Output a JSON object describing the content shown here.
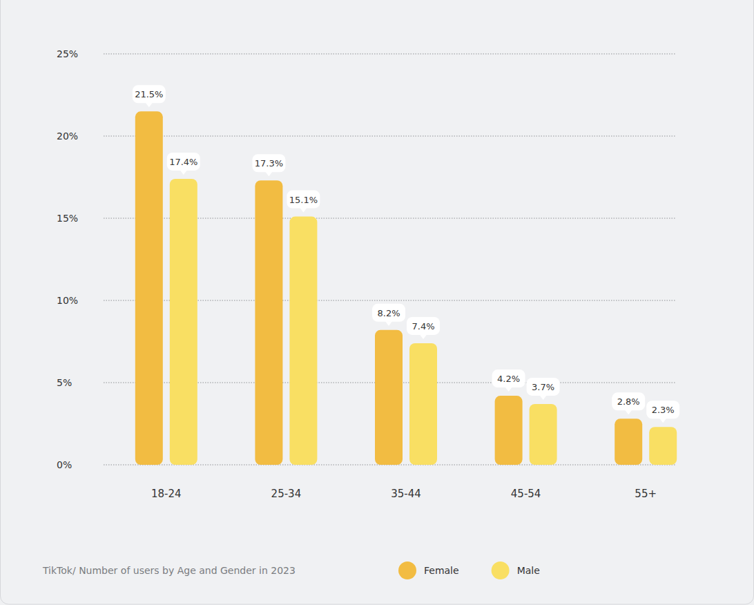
{
  "chart_data": {
    "type": "bar",
    "title": "TikTok/ Number of users by Age and Gender in 2023",
    "categories": [
      "18-24",
      "25-34",
      "35-44",
      "45-54",
      "55+"
    ],
    "series": [
      {
        "name": "Female",
        "color": "#f2bc42",
        "values": [
          21.5,
          17.3,
          8.2,
          4.2,
          2.8
        ],
        "value_labels": [
          "21.5%",
          "17.3%",
          "8.2%",
          "4.2%",
          "2.8%"
        ]
      },
      {
        "name": "Male",
        "color": "#f9df63",
        "values": [
          17.4,
          15.1,
          7.4,
          3.7,
          2.3
        ],
        "value_labels": [
          "17.4%",
          "15.1%",
          "7.4%",
          "3.7%",
          "2.3%"
        ]
      }
    ],
    "ylim": [
      0,
      25
    ],
    "yticks": [
      {
        "value": 0,
        "label": "0%"
      },
      {
        "value": 5,
        "label": "5%"
      },
      {
        "value": 10,
        "label": "10%"
      },
      {
        "value": 15,
        "label": "15%"
      },
      {
        "value": 20,
        "label": "20%"
      },
      {
        "value": 25,
        "label": "25%"
      }
    ],
    "grid": true,
    "data_labels": true,
    "legend": "bottom"
  }
}
